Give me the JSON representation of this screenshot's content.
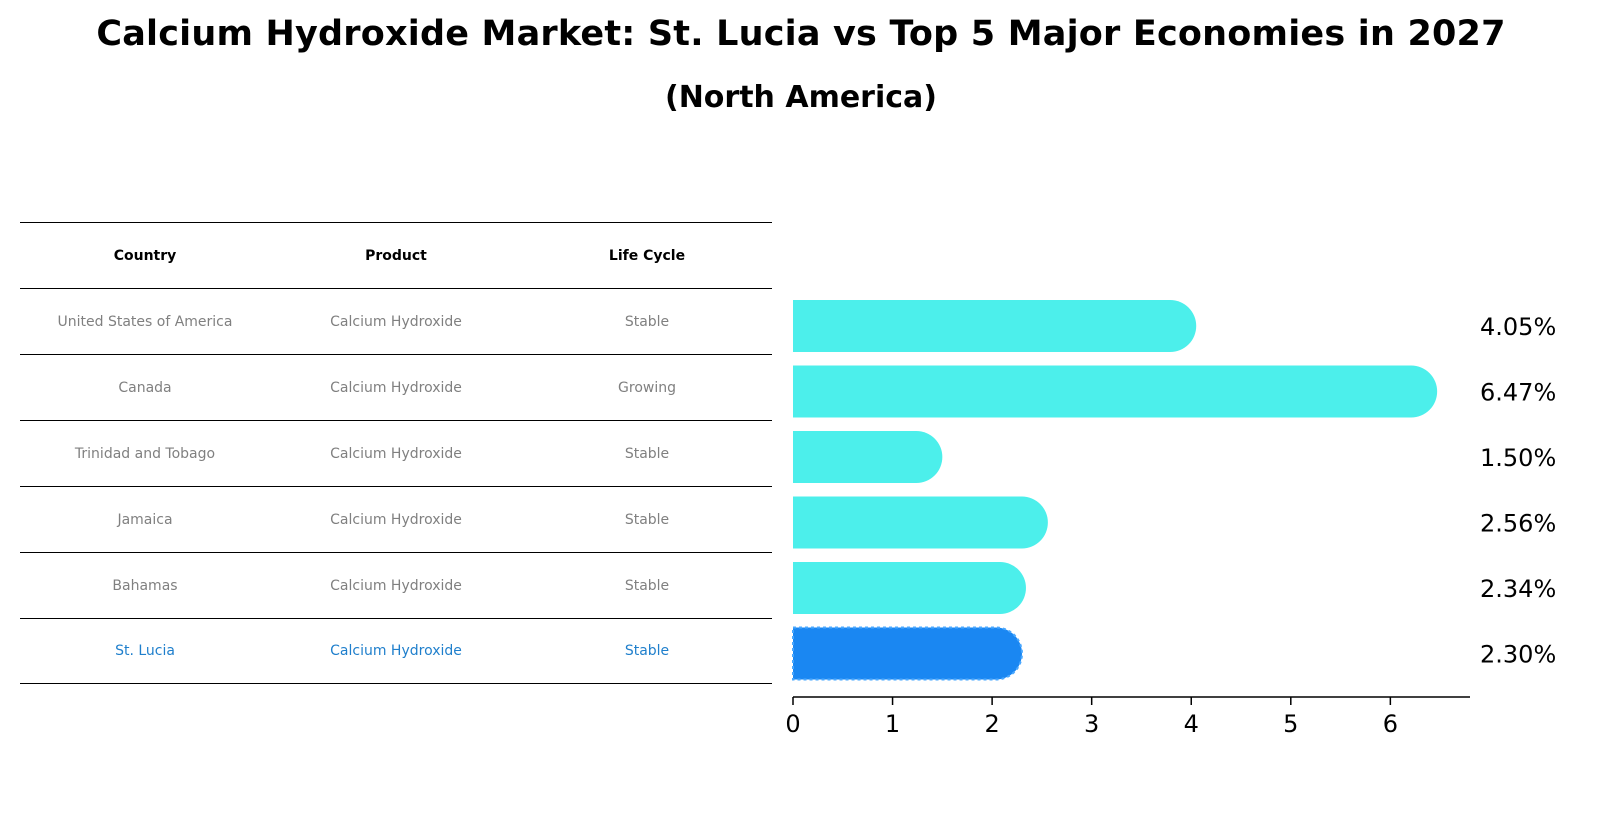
{
  "title": "Calcium Hydroxide Market: St. Lucia vs Top 5 Major Economies in 2027",
  "subtitle": "(North America)",
  "table": {
    "headers": [
      "Country",
      "Product",
      "Life Cycle"
    ],
    "rows": [
      [
        "United States of America",
        "Calcium Hydroxide",
        "Stable"
      ],
      [
        "Canada",
        "Calcium Hydroxide",
        "Growing"
      ],
      [
        "Trinidad and Tobago",
        "Calcium Hydroxide",
        "Stable"
      ],
      [
        "Jamaica",
        "Calcium Hydroxide",
        "Stable"
      ],
      [
        "Bahamas",
        "Calcium Hydroxide",
        "Stable"
      ],
      [
        "St. Lucia",
        "Calcium Hydroxide",
        "Stable"
      ]
    ],
    "highlight_row": 5
  },
  "colors": {
    "bar": "#4cefeb",
    "highlight_bar": "#1a87f2",
    "highlight_text": "#1f7fcc",
    "muted_text": "#808080"
  },
  "chart_data": {
    "type": "bar",
    "orientation": "horizontal",
    "categories": [
      "United States of America",
      "Canada",
      "Trinidad and Tobago",
      "Jamaica",
      "Bahamas",
      "St. Lucia"
    ],
    "values": [
      4.05,
      6.47,
      1.5,
      2.56,
      2.34,
      2.3
    ],
    "value_labels": [
      "4.05%",
      "6.47%",
      "1.50%",
      "2.56%",
      "2.34%",
      "2.30%"
    ],
    "xlim": [
      0,
      6.8
    ],
    "xticks": [
      0,
      1,
      2,
      3,
      4,
      5,
      6
    ],
    "highlight_index": 5,
    "xlabel": "",
    "ylabel": ""
  }
}
